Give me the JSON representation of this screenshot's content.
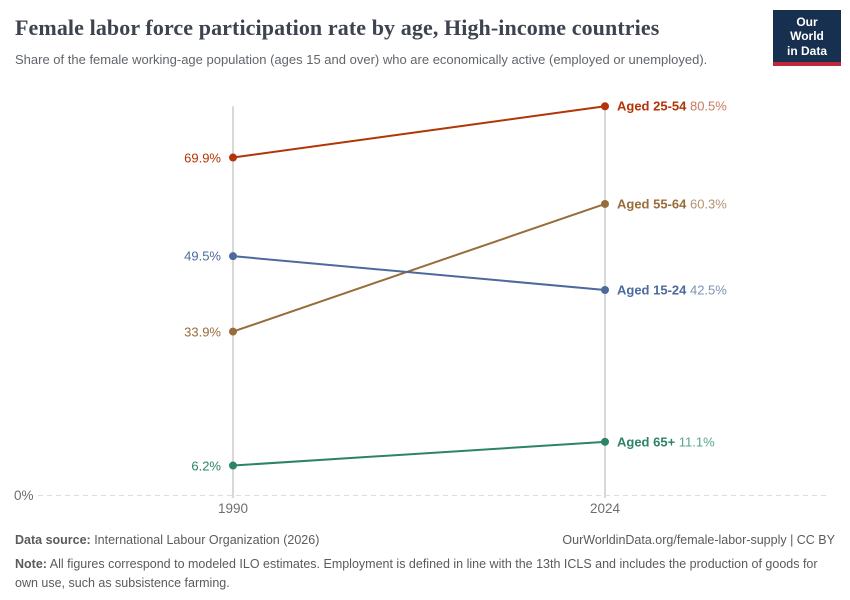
{
  "header": {
    "title": "Female labor force participation rate by age, High-income countries",
    "subtitle": "Share of the female working-age population (ages 15 and over) who are economically active (employed or unemployed).",
    "logo": {
      "line1": "Our World",
      "line2": "in Data"
    }
  },
  "chart_data": {
    "type": "line",
    "subtype": "slope-chart",
    "title": "Female labor force participation rate by age, High-income countries",
    "x": [
      "1990",
      "2024"
    ],
    "series": [
      {
        "name": "Aged 25-54",
        "values": [
          69.9,
          80.5
        ],
        "start_label": "69.9%",
        "end_label": "80.5%",
        "color": "#b13507",
        "value_color": "#c97a5c"
      },
      {
        "name": "Aged 55-64",
        "values": [
          33.9,
          60.3
        ],
        "start_label": "33.9%",
        "end_label": "60.3%",
        "color": "#996d39",
        "value_color": "#b4946d"
      },
      {
        "name": "Aged 15-24",
        "values": [
          49.5,
          42.5
        ],
        "start_label": "49.5%",
        "end_label": "42.5%",
        "color": "#4c6a9c",
        "value_color": "#7b90b8"
      },
      {
        "name": "Aged 65+",
        "values": [
          6.2,
          11.1
        ],
        "start_label": "6.2%",
        "end_label": "11.1%",
        "color": "#2c8465",
        "value_color": "#57a58e"
      }
    ],
    "ylim": [
      0,
      83
    ],
    "y_zero_label": "0%",
    "grid": "dashed-baseline-at-zero",
    "legend_position": "inline-right-labels",
    "axis_line_color": "#cfcfcf",
    "baseline_color": "#dcdcdc"
  },
  "footer": {
    "source_label": "Data source:",
    "source_text": " International Labour Organization (2026)",
    "link_text": "OurWorldinData.org/female-labor-supply | CC BY",
    "note_label": "Note:",
    "note_text": " All figures correspond to modeled ILO estimates. Employment is defined in line with the 13th ICLS and includes the production of goods for own use, such as subsistence farming."
  }
}
